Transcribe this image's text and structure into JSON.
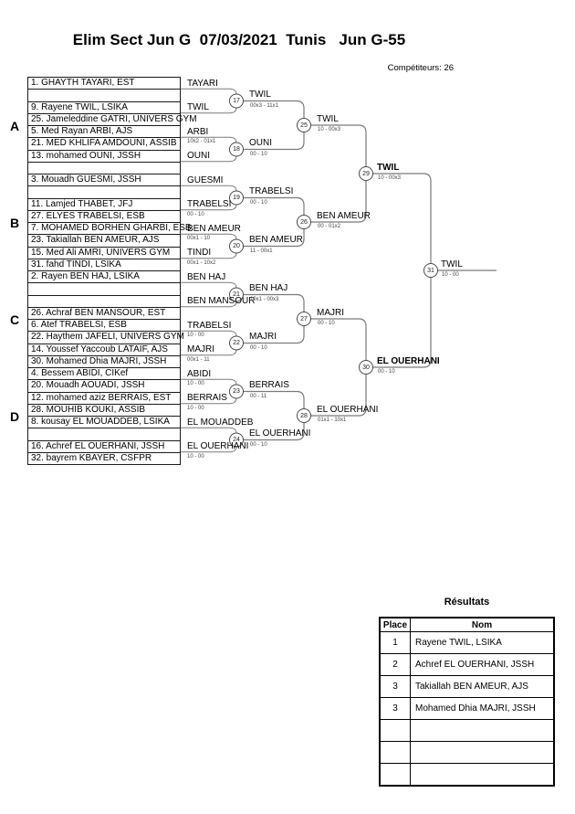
{
  "header": {
    "title": "Elim Sect Jun G  07/03/2021  Tunis   Jun G-55",
    "competitors": "Compétiteurs: 26"
  },
  "sections": [
    {
      "label": "A",
      "slots": [
        "1. GHAYTH TAYARI, EST",
        "",
        "9. Rayene TWIL, LSIKA",
        "25. Jameleddine GATRI, UNIVERS GYM",
        "5. Med Rayan ARBI, AJS",
        "21. MED KHLIFA AMDOUNI, ASSIB",
        "13. mohamed OUNI, JSSH",
        ""
      ],
      "round1_winners": [
        {
          "name": "TAYARI",
          "score": ""
        },
        {
          "name": "TWIL",
          "score": ""
        },
        {
          "name": "ARBI",
          "score": "10x2 - 01x1"
        },
        {
          "name": "OUNI",
          "score": ""
        }
      ]
    },
    {
      "label": "B",
      "slots": [
        "3. Mouadh GUESMI, JSSH",
        "",
        "11. Lamjed THABET, JFJ",
        "27. ELYES TRABELSI, ESB",
        "7. MOHAMED BORHEN GHARBI, ESB",
        "23. Takiallah BEN AMEUR, AJS",
        "15. Med Ali AMRI, UNIVERS GYM",
        "31. fahd TINDI, LSIKA"
      ],
      "round1_winners": [
        {
          "name": "GUESMI",
          "score": ""
        },
        {
          "name": "TRABELSI",
          "score": "00 - 10"
        },
        {
          "name": "BEN AMEUR",
          "score": "00x1 - 10"
        },
        {
          "name": "TINDI",
          "score": "00x1 - 10x2"
        }
      ]
    },
    {
      "label": "C",
      "slots": [
        "2. Rayen BEN HAJ, LSIKA",
        "",
        "",
        "26. Achraf BEN MANSOUR, EST",
        "6. Atef TRABELSI, ESB",
        "22. Haythem JAFELI, UNIVERS GYM",
        "14. Youssef Yaccoub LATAIF, AJS",
        "30. Mohamed Dhia MAJRI, JSSH"
      ],
      "round1_winners": [
        {
          "name": "BEN HAJ",
          "score": ""
        },
        {
          "name": "BEN MANSOUR",
          "score": ""
        },
        {
          "name": "TRABELSI",
          "score": "10 - 00"
        },
        {
          "name": "MAJRI",
          "score": "00x1 - 11"
        }
      ]
    },
    {
      "label": "D",
      "slots": [
        "4. Bessem ABIDI, CIKef",
        "20. Mouadh AOUADI, JSSH",
        "12. mohamed aziz BERRAIS, EST",
        "28. MOUHIB KOUKI, ASSIB",
        "8. kousay EL MOUADDEB, LSIKA",
        "",
        "16. Achref EL OUERHANI, JSSH",
        "32. bayrem KBAYER, CSFPR"
      ],
      "round1_winners": [
        {
          "name": "ABIDI",
          "score": "10 - 00"
        },
        {
          "name": "BERRAIS",
          "score": "10 - 00"
        },
        {
          "name": "EL MOUADDEB",
          "score": ""
        },
        {
          "name": "EL OUERHANI",
          "score": "10 - 00"
        }
      ]
    }
  ],
  "matches": {
    "round_of_16": [
      {
        "no": "17",
        "winner": "TWIL",
        "score": "00x3 - 11x1"
      },
      {
        "no": "18",
        "winner": "OUNI",
        "score": "00 - 10"
      },
      {
        "no": "19",
        "winner": "TRABELSI",
        "score": "00 - 10"
      },
      {
        "no": "20",
        "winner": "BEN AMEUR",
        "score": "11 - 00x1"
      },
      {
        "no": "21",
        "winner": "BEN HAJ",
        "score": "10x1 - 00x3"
      },
      {
        "no": "22",
        "winner": "MAJRI",
        "score": "00 - 10"
      },
      {
        "no": "23",
        "winner": "BERRAIS",
        "score": "00 - 11"
      },
      {
        "no": "24",
        "winner": "EL OUERHANI",
        "score": "00 - 10"
      }
    ],
    "quarterfinals": [
      {
        "no": "25",
        "winner": "TWIL",
        "score": "10 - 00x3"
      },
      {
        "no": "26",
        "winner": "BEN AMEUR",
        "score": "00 - 01x2"
      },
      {
        "no": "27",
        "winner": "MAJRI",
        "score": "00 - 10"
      },
      {
        "no": "28",
        "winner": "EL OUERHANI",
        "score": "01x1 - 10x1"
      }
    ],
    "semifinals": [
      {
        "no": "29",
        "winner": "TWIL",
        "score": "10 - 00x3",
        "bold": true
      },
      {
        "no": "30",
        "winner": "EL OUERHANI",
        "score": "00 - 10",
        "bold": true
      }
    ],
    "final": [
      {
        "no": "31",
        "winner": "TWIL",
        "score": "10 - 00"
      }
    ]
  },
  "results": {
    "title": "Résultats",
    "columns": [
      "Place",
      "Nom"
    ],
    "rows": [
      {
        "place": "1",
        "nom": "Rayene TWIL, LSIKA"
      },
      {
        "place": "2",
        "nom": "Achref EL OUERHANI, JSSH"
      },
      {
        "place": "3",
        "nom": "Takiallah BEN AMEUR, AJS"
      },
      {
        "place": "3",
        "nom": "Mohamed Dhia MAJRI, JSSH"
      },
      {
        "place": "",
        "nom": ""
      },
      {
        "place": "",
        "nom": ""
      },
      {
        "place": "",
        "nom": ""
      }
    ]
  }
}
